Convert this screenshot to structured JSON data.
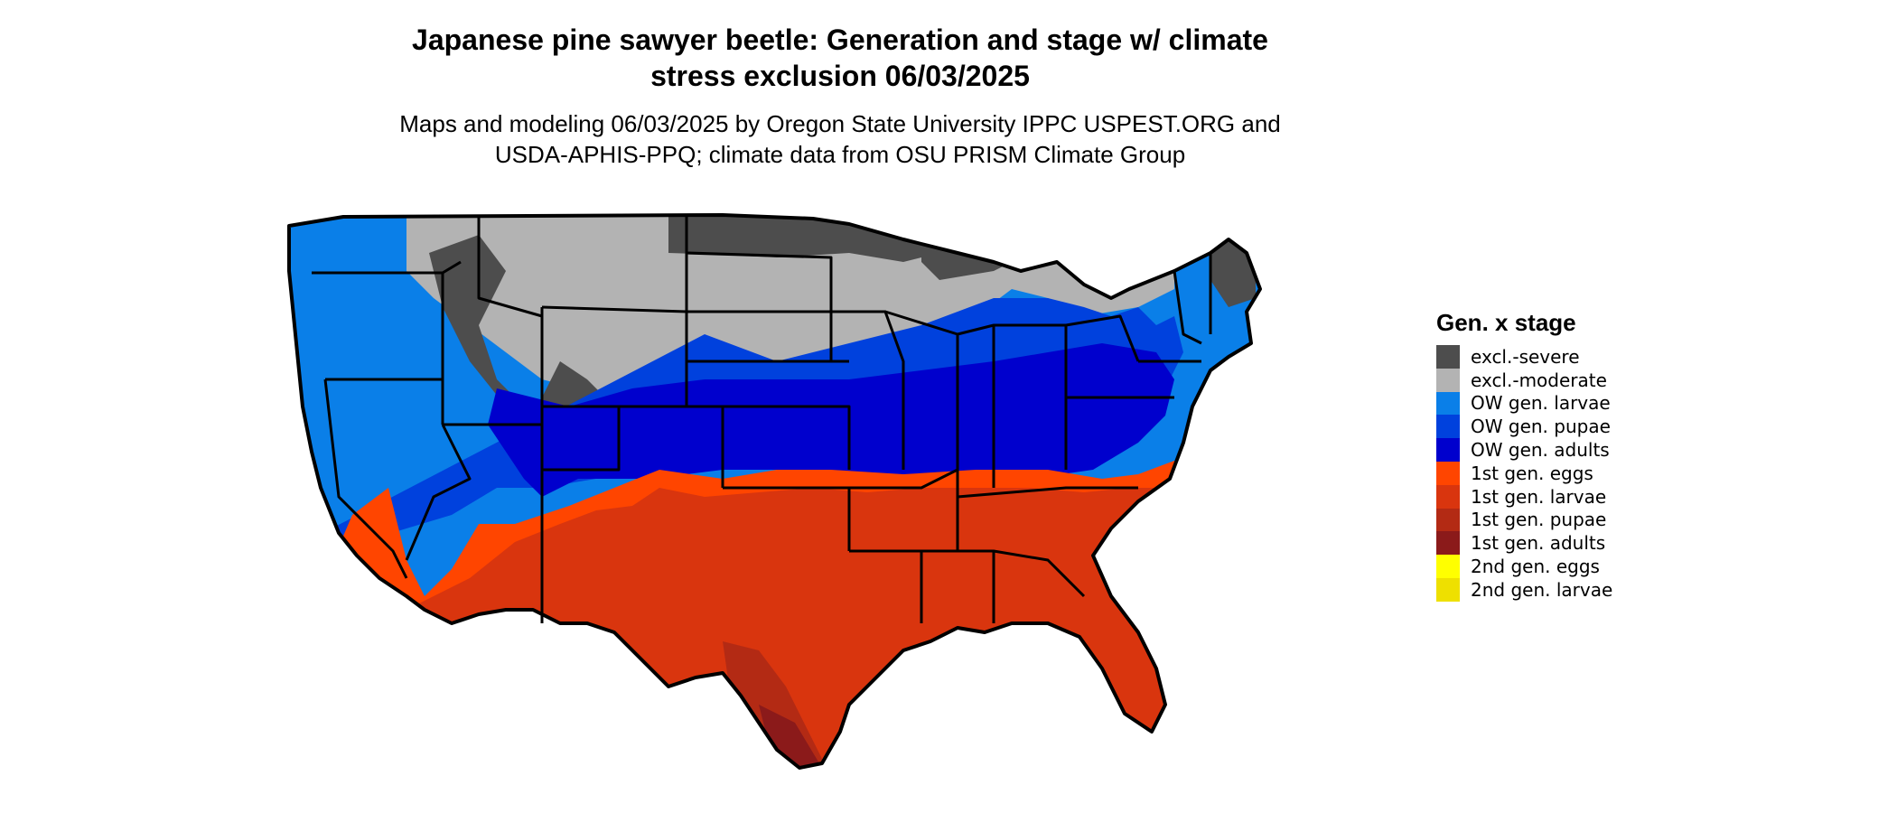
{
  "title_line1": "Japanese pine sawyer beetle: Generation and stage w/ climate",
  "title_line2": "stress exclusion 06/03/2025",
  "subtitle_line1": "Maps and modeling 06/03/2025 by Oregon State University IPPC USPEST.ORG and",
  "subtitle_line2": "USDA-APHIS-PPQ; climate data from OSU PRISM Climate Group",
  "legend": {
    "title": "Gen. x stage",
    "items": [
      {
        "label": "excl.-severe",
        "color": "#4d4d4d"
      },
      {
        "label": "excl.-moderate",
        "color": "#b3b3b3"
      },
      {
        "label": "OW gen. larvae",
        "color": "#0a7fe8"
      },
      {
        "label": "OW gen. pupae",
        "color": "#0041dd"
      },
      {
        "label": "OW gen. adults",
        "color": "#0000cd"
      },
      {
        "label": "1st gen. eggs",
        "color": "#ff4500"
      },
      {
        "label": "1st gen. larvae",
        "color": "#d9350e"
      },
      {
        "label": "1st gen. pupae",
        "color": "#b32a14"
      },
      {
        "label": "1st gen. adults",
        "color": "#8b1a1a"
      },
      {
        "label": "2nd gen. eggs",
        "color": "#ffff00"
      },
      {
        "label": "2nd gen. larvae",
        "color": "#eee000"
      }
    ]
  }
}
